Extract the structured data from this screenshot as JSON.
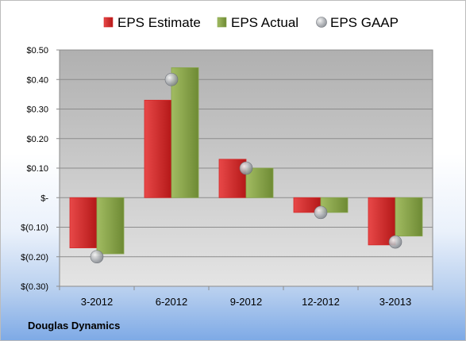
{
  "company": "Douglas Dynamics",
  "colors": {
    "estimate": "#d42a2a",
    "actual": "#86a44a",
    "gaap": "#b8bcc2"
  },
  "chart_data": {
    "type": "bar",
    "categories": [
      "3-2012",
      "6-2012",
      "9-2012",
      "12-2012",
      "3-2013"
    ],
    "series": [
      {
        "name": "EPS Estimate",
        "kind": "bar",
        "values": [
          -0.17,
          0.33,
          0.13,
          -0.05,
          -0.16
        ]
      },
      {
        "name": "EPS Actual",
        "kind": "bar",
        "values": [
          -0.19,
          0.44,
          0.1,
          -0.05,
          -0.13
        ]
      },
      {
        "name": "EPS GAAP",
        "kind": "marker",
        "values": [
          -0.2,
          0.4,
          0.1,
          -0.05,
          -0.15
        ]
      }
    ],
    "ylim": [
      -0.3,
      0.5
    ],
    "yticks": [
      0.5,
      0.4,
      0.3,
      0.2,
      0.1,
      0,
      -0.1,
      -0.2,
      -0.3
    ],
    "ytick_labels": [
      "$0.50",
      "$0.40",
      "$0.30",
      "$0.20",
      "$0.10",
      "$-",
      "$(0.10)",
      "$(0.20)",
      "$(0.30)"
    ],
    "legend_position": "top",
    "grid": true,
    "title": "",
    "xlabel": "",
    "ylabel": ""
  }
}
